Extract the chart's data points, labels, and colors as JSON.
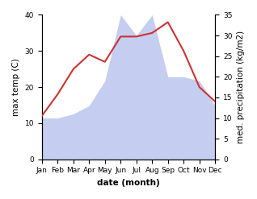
{
  "months": [
    "Jan",
    "Feb",
    "Mar",
    "Apr",
    "May",
    "Jun",
    "Jul",
    "Aug",
    "Sep",
    "Oct",
    "Nov",
    "Dec"
  ],
  "temperature": [
    12,
    18,
    25,
    29,
    27,
    34,
    34,
    35,
    38,
    30,
    20,
    16
  ],
  "precipitation": [
    10,
    10,
    11,
    13,
    19,
    35,
    30,
    35,
    20,
    20,
    19,
    13
  ],
  "temp_color": "#cc3333",
  "precip_fill_color": "#c5cef0",
  "temp_ylim": [
    0,
    40
  ],
  "precip_ylim": [
    0,
    35
  ],
  "xlabel": "date (month)",
  "ylabel_left": "max temp (C)",
  "ylabel_right": "med. precipitation (kg/m2)",
  "temp_yticks": [
    0,
    10,
    20,
    30,
    40
  ],
  "precip_yticks": [
    0,
    5,
    10,
    15,
    20,
    25,
    30,
    35
  ],
  "label_fontsize": 7.5,
  "tick_fontsize": 6.5
}
